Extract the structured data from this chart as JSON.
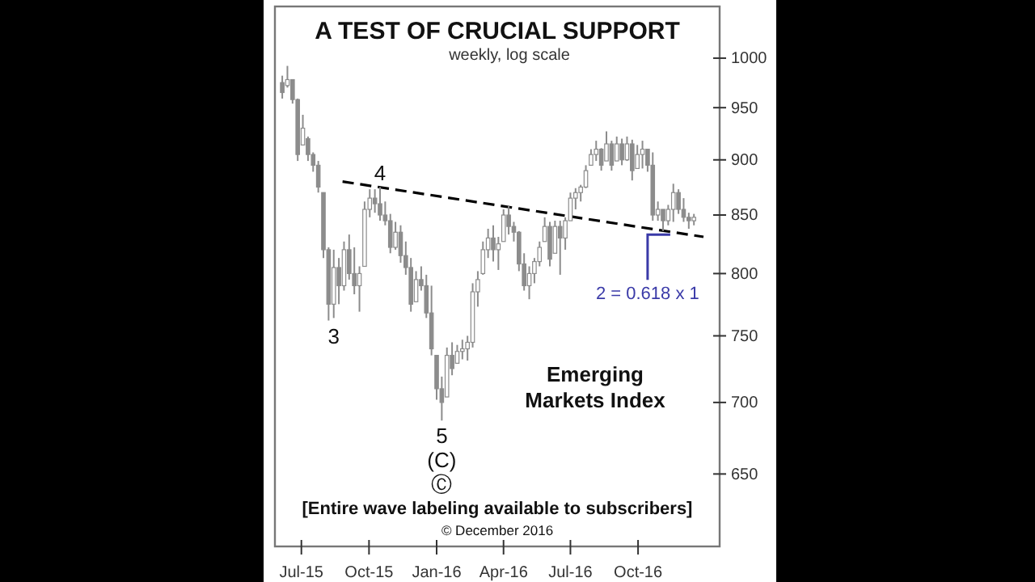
{
  "chart_data": {
    "type": "candlestick",
    "title": "A TEST OF CRUCIAL SUPPORT",
    "subtitle": "weekly, log scale",
    "color": "#8c8c8c",
    "log": true,
    "grid": false,
    "xlim": [
      "2015-05-26",
      "2017-01-20"
    ],
    "xticks": [
      {
        "value": "2015-07-01",
        "label": "Jul-15"
      },
      {
        "value": "2015-10-01",
        "label": "Oct-15"
      },
      {
        "value": "2016-01-01",
        "label": "Jan-16"
      },
      {
        "value": "2016-04-01",
        "label": "Apr-16"
      },
      {
        "value": "2016-07-01",
        "label": "Jul-16"
      },
      {
        "value": "2016-10-01",
        "label": "Oct-16"
      }
    ],
    "ylim": [
      603,
      1055
    ],
    "yticks": [
      650,
      700,
      750,
      800,
      850,
      900,
      950,
      1000
    ],
    "x": [
      "2015-06-05",
      "2015-06-12",
      "2015-06-19",
      "2015-06-26",
      "2015-07-03",
      "2015-07-10",
      "2015-07-17",
      "2015-07-24",
      "2015-07-31",
      "2015-08-07",
      "2015-08-14",
      "2015-08-21",
      "2015-08-28",
      "2015-09-04",
      "2015-09-11",
      "2015-09-18",
      "2015-09-25",
      "2015-10-02",
      "2015-10-09",
      "2015-10-16",
      "2015-10-23",
      "2015-10-30",
      "2015-11-06",
      "2015-11-13",
      "2015-11-20",
      "2015-11-27",
      "2015-12-04",
      "2015-12-11",
      "2015-12-18",
      "2015-12-25",
      "2016-01-01",
      "2016-01-08",
      "2016-01-15",
      "2016-01-22",
      "2016-01-29",
      "2016-02-05",
      "2016-02-12",
      "2016-02-19",
      "2016-02-26",
      "2016-03-04",
      "2016-03-11",
      "2016-03-18",
      "2016-03-25",
      "2016-04-01",
      "2016-04-08",
      "2016-04-15",
      "2016-04-22",
      "2016-04-29",
      "2016-05-06",
      "2016-05-13",
      "2016-05-20",
      "2016-05-27",
      "2016-06-03",
      "2016-06-10",
      "2016-06-17",
      "2016-06-24",
      "2016-07-01",
      "2016-07-08",
      "2016-07-15",
      "2016-07-22",
      "2016-07-29",
      "2016-08-05",
      "2016-08-12",
      "2016-08-19",
      "2016-08-26",
      "2016-09-02",
      "2016-09-09",
      "2016-09-16",
      "2016-09-23",
      "2016-09-30",
      "2016-10-07",
      "2016-10-14",
      "2016-10-21",
      "2016-10-28",
      "2016-11-04",
      "2016-11-11",
      "2016-11-18",
      "2016-11-25",
      "2016-12-02",
      "2016-12-09",
      "2016-12-16"
    ],
    "ohlc": [
      [
        975,
        982,
        959,
        965
      ],
      [
        972,
        992,
        970,
        978
      ],
      [
        978,
        978,
        954,
        958
      ],
      [
        958,
        959,
        899,
        905
      ],
      [
        914,
        943,
        914,
        930
      ],
      [
        920,
        922,
        899,
        905
      ],
      [
        905,
        907,
        889,
        895
      ],
      [
        895,
        899,
        870,
        875
      ],
      [
        870,
        870,
        813,
        820
      ],
      [
        820,
        822,
        762,
        775
      ],
      [
        775,
        820,
        764,
        805
      ],
      [
        805,
        813,
        775,
        790
      ],
      [
        790,
        827,
        786,
        820
      ],
      [
        820,
        833,
        795,
        800
      ],
      [
        800,
        822,
        783,
        790
      ],
      [
        790,
        806,
        769,
        800
      ],
      [
        806,
        862,
        806,
        855
      ],
      [
        855,
        873,
        848,
        865
      ],
      [
        865,
        873,
        852,
        860
      ],
      [
        860,
        875,
        845,
        850
      ],
      [
        850,
        862,
        841,
        845
      ],
      [
        845,
        851,
        817,
        822
      ],
      [
        822,
        844,
        820,
        835
      ],
      [
        835,
        841,
        809,
        815
      ],
      [
        815,
        827,
        799,
        805
      ],
      [
        805,
        813,
        769,
        775
      ],
      [
        777,
        802,
        777,
        795
      ],
      [
        795,
        806,
        786,
        790
      ],
      [
        790,
        799,
        764,
        768
      ],
      [
        768,
        790,
        735,
        740
      ],
      [
        735,
        735,
        702,
        710
      ],
      [
        710,
        719,
        687,
        700
      ],
      [
        704,
        741,
        704,
        735
      ],
      [
        735,
        745,
        720,
        725
      ],
      [
        729,
        743,
        729,
        738
      ],
      [
        738,
        747,
        732,
        740
      ],
      [
        740,
        750,
        731,
        745
      ],
      [
        745,
        792,
        741,
        785
      ],
      [
        785,
        802,
        773,
        795
      ],
      [
        800,
        827,
        799,
        820
      ],
      [
        820,
        838,
        813,
        830
      ],
      [
        830,
        841,
        810,
        820
      ],
      [
        820,
        831,
        803,
        825
      ],
      [
        827,
        855,
        827,
        850
      ],
      [
        850,
        858,
        833,
        840
      ],
      [
        840,
        844,
        827,
        835
      ],
      [
        835,
        836,
        802,
        808
      ],
      [
        808,
        817,
        786,
        790
      ],
      [
        790,
        806,
        779,
        800
      ],
      [
        800,
        813,
        792,
        810
      ],
      [
        810,
        827,
        806,
        822
      ],
      [
        827,
        848,
        827,
        840
      ],
      [
        840,
        844,
        806,
        812
      ],
      [
        817,
        845,
        817,
        840
      ],
      [
        840,
        845,
        799,
        830
      ],
      [
        830,
        848,
        820,
        845
      ],
      [
        845,
        870,
        845,
        865
      ],
      [
        865,
        874,
        855,
        870
      ],
      [
        870,
        877,
        862,
        875
      ],
      [
        875,
        895,
        874,
        890
      ],
      [
        895,
        910,
        895,
        905
      ],
      [
        905,
        918,
        899,
        910
      ],
      [
        910,
        911,
        890,
        895
      ],
      [
        899,
        927,
        899,
        915
      ],
      [
        915,
        918,
        890,
        895
      ],
      [
        899,
        922,
        899,
        915
      ],
      [
        915,
        920,
        895,
        900
      ],
      [
        900,
        922,
        899,
        915
      ],
      [
        915,
        919,
        881,
        890
      ],
      [
        892,
        914,
        892,
        905
      ],
      [
        905,
        918,
        892,
        910
      ],
      [
        910,
        910,
        889,
        895
      ],
      [
        895,
        907,
        845,
        850
      ],
      [
        850,
        862,
        845,
        855
      ],
      [
        855,
        855,
        836,
        845
      ],
      [
        845,
        859,
        841,
        855
      ],
      [
        855,
        878,
        844,
        870
      ],
      [
        870,
        873,
        851,
        855
      ],
      [
        855,
        865,
        844,
        848
      ],
      [
        848,
        852,
        838,
        845
      ],
      [
        845,
        851,
        841,
        848
      ]
    ],
    "series": [
      {
        "type": "line",
        "x": [
          "2015-08-26",
          "2016-12-29"
        ],
        "values": [
          880,
          831
        ],
        "color": "#000000",
        "line_style": "dashed"
      }
    ],
    "annotations": [
      {
        "text": "3",
        "x": "2015-08-14",
        "y": 762
      },
      {
        "text": "4",
        "x": "2015-10-16",
        "y": 875
      },
      {
        "text": "5",
        "x": "2016-01-08",
        "y": 687
      },
      {
        "text": "(C)",
        "x": "2016-01-08",
        "y": 687
      },
      {
        "text": "Ⓒ",
        "x": "2016-01-08",
        "y": 687
      },
      {
        "text": "2 = 0.618 x 1",
        "x": "2016-10-14",
        "y": 833
      },
      "Emerging Markets Index",
      "[Entire wave labeling available to subscribers]",
      "© December 2016"
    ]
  }
}
